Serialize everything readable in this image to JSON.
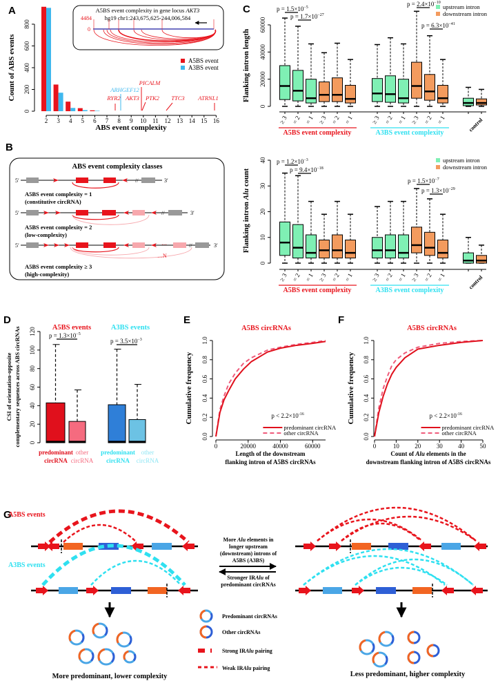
{
  "panel_labels": {
    "A": "A",
    "B": "B",
    "C": "C",
    "D": "D",
    "E": "E",
    "F": "F",
    "G": "G"
  },
  "colors": {
    "a5bs": "#e8141c",
    "a3bs": "#2fe0f0",
    "a3bs_bar": "#3fb8ee",
    "upstream": "#7ff0b4",
    "downstream": "#f39b5e",
    "d_pred_a5": "#e0101c",
    "d_other_a5": "#f56b7f",
    "d_pred_a3": "#2f7fd8",
    "d_other_a3": "#6cc2e4",
    "exon_orange": "#f26522",
    "exon_blue": "#2e5fd6",
    "exon_lightblue": "#4aa6e6",
    "grey": "#999999",
    "pink": "#f7a8ad"
  },
  "chart_data": [
    {
      "id": "A",
      "type": "bar",
      "title": "",
      "xlabel": "ABS event complexity",
      "ylabel": "Count of ABS events",
      "categories": [
        2,
        3,
        4,
        5,
        6,
        7,
        8,
        9,
        10,
        11,
        12,
        13,
        14,
        15,
        16
      ],
      "yticks": [
        0,
        200,
        400,
        600,
        800
      ],
      "ylim": [
        0,
        960
      ],
      "legend": "right",
      "series": [
        {
          "name": "A5BS event",
          "values": [
            960,
            245,
            88,
            28,
            8,
            0,
            0,
            0,
            0,
            0,
            0,
            0,
            0,
            0,
            0
          ]
        },
        {
          "name": "A3BS event",
          "values": [
            950,
            170,
            30,
            10,
            4,
            0,
            0,
            0,
            0,
            0,
            0,
            0,
            0,
            0,
            0
          ]
        }
      ],
      "gene_annotations": [
        {
          "gene": "RYR2",
          "complexity": 8,
          "event": "A5BS"
        },
        {
          "gene": "ARHGEF12",
          "complexity": 8,
          "event": "A3BS"
        },
        {
          "gene": "PICALM",
          "complexity": 10,
          "event": "A5BS"
        },
        {
          "gene": "AKT3",
          "complexity": 10,
          "event": "A5BS"
        },
        {
          "gene": "PTK2",
          "complexity": 10,
          "event": "A5BS"
        },
        {
          "gene": "TTC3",
          "complexity": 12,
          "event": "A5BS"
        },
        {
          "gene": "ATRNL1",
          "complexity": 16,
          "event": "A5BS"
        }
      ],
      "inset": {
        "title": "A5BS event complexity in gene locus ",
        "gene": "AKT3",
        "coords": "hg19 chr1:243,675,625-244,006,584",
        "ymax_label": "4484",
        "ymin_label": "0"
      }
    },
    {
      "id": "C-length",
      "type": "box",
      "ylabel": "Flanking intron length",
      "yticks": [
        0,
        20000,
        40000,
        60000
      ],
      "ylim": [
        0,
        60000
      ],
      "legend": "top-right",
      "legend_entries": [
        "upstream intron",
        "downstream intron"
      ],
      "group_labels": [
        "A5BS event complexity",
        "A3BS event complexity"
      ],
      "control_label": "control",
      "tick_labels": [
        "≥ 3",
        "= 2",
        "= 1",
        "≥ 3",
        "= 2",
        "= 1",
        "≥ 3",
        "= 2",
        "= 1",
        "≥ 3",
        "= 2",
        "= 1"
      ],
      "boxes": [
        {
          "group": "A5BS",
          "class": "≥3",
          "intron": "upstream",
          "low": 0,
          "q1": 5000,
          "median": 15000,
          "q3": 30000,
          "high": 65000
        },
        {
          "group": "A5BS",
          "class": "=2",
          "intron": "upstream",
          "low": 0,
          "q1": 4000,
          "median": 11500,
          "q3": 26500,
          "high": 59000
        },
        {
          "group": "A5BS",
          "class": "=1",
          "intron": "upstream",
          "low": 0,
          "q1": 2500,
          "median": 6000,
          "q3": 20000,
          "high": 46000
        },
        {
          "group": "A5BS",
          "class": "≥3",
          "intron": "downstream",
          "low": 0,
          "q1": 3500,
          "median": 8500,
          "q3": 18000,
          "high": 39500
        },
        {
          "group": "A5BS",
          "class": "=2",
          "intron": "downstream",
          "low": 0,
          "q1": 3500,
          "median": 8500,
          "q3": 21000,
          "high": 46500
        },
        {
          "group": "A5BS",
          "class": "=1",
          "intron": "downstream",
          "low": 0,
          "q1": 2500,
          "median": 5500,
          "q3": 15500,
          "high": 34500
        },
        {
          "group": "A3BS",
          "class": "≥3",
          "intron": "upstream",
          "low": 0,
          "q1": 3500,
          "median": 9500,
          "q3": 20500,
          "high": 45500
        },
        {
          "group": "A3BS",
          "class": "=2",
          "intron": "upstream",
          "low": 0,
          "q1": 3000,
          "median": 9000,
          "q3": 22500,
          "high": 50500
        },
        {
          "group": "A3BS",
          "class": "=1",
          "intron": "upstream",
          "low": 0,
          "q1": 2500,
          "median": 6000,
          "q3": 20000,
          "high": 46000
        },
        {
          "group": "A3BS",
          "class": "≥3",
          "intron": "downstream",
          "low": 0,
          "q1": 6000,
          "median": 15000,
          "q3": 32500,
          "high": 70000
        },
        {
          "group": "A3BS",
          "class": "=2",
          "intron": "downstream",
          "low": 0,
          "q1": 4500,
          "median": 11000,
          "q3": 23500,
          "high": 52000
        },
        {
          "group": "A3BS",
          "class": "=1",
          "intron": "downstream",
          "low": 0,
          "q1": 2500,
          "median": 6000,
          "q3": 15500,
          "high": 34500
        },
        {
          "group": "control",
          "class": "control",
          "intron": "upstream",
          "low": 0,
          "q1": 500,
          "median": 2500,
          "q3": 6000,
          "high": 14000
        },
        {
          "group": "control",
          "class": "control",
          "intron": "downstream",
          "low": 0,
          "q1": 1000,
          "median": 2500,
          "q3": 5500,
          "high": 12500
        }
      ],
      "pvalues": [
        {
          "base": "p = 1.5×10",
          "exp": "−5"
        },
        {
          "base": "p = 1.7×10",
          "exp": "−27"
        },
        {
          "base": "p = 2.4×10",
          "exp": "−10"
        },
        {
          "base": "p = 6.3×10",
          "exp": "−41"
        }
      ]
    },
    {
      "id": "C-alu",
      "type": "box",
      "ylabel_pre": "Flanking intron ",
      "ylabel_it": "Alu",
      "ylabel_post": " count",
      "yticks": [
        0,
        10,
        20,
        30,
        40
      ],
      "ylim": [
        0,
        40
      ],
      "legend": "top-right",
      "legend_entries": [
        "upstream intron",
        "downstream intron"
      ],
      "group_labels": [
        "A5BS event complexity",
        "A3BS event complexity"
      ],
      "control_label": "control",
      "tick_labels": [
        "≥ 3",
        "= 2",
        "= 1",
        "≥ 3",
        "= 2",
        "= 1",
        "≥ 3",
        "= 2",
        "= 1",
        "≥ 3",
        "= 2",
        "= 1"
      ],
      "boxes": [
        {
          "group": "A5BS",
          "class": "≥3",
          "intron": "upstream",
          "low": 0,
          "q1": 3,
          "median": 8,
          "q3": 16,
          "high": 35
        },
        {
          "group": "A5BS",
          "class": "=2",
          "intron": "upstream",
          "low": 0,
          "q1": 2,
          "median": 6,
          "q3": 15,
          "high": 34
        },
        {
          "group": "A5BS",
          "class": "=1",
          "intron": "upstream",
          "low": 0,
          "q1": 2,
          "median": 4,
          "q3": 11,
          "high": 24
        },
        {
          "group": "A5BS",
          "class": "≥3",
          "intron": "downstream",
          "low": 0,
          "q1": 2,
          "median": 5,
          "q3": 9,
          "high": 19
        },
        {
          "group": "A5BS",
          "class": "=2",
          "intron": "downstream",
          "low": 0,
          "q1": 2,
          "median": 5,
          "q3": 11,
          "high": 24
        },
        {
          "group": "A5BS",
          "class": "=1",
          "intron": "downstream",
          "low": 0,
          "q1": 2,
          "median": 4,
          "q3": 9,
          "high": 19
        },
        {
          "group": "A3BS",
          "class": "≥3",
          "intron": "upstream",
          "low": 0,
          "q1": 2,
          "median": 5,
          "q3": 10,
          "high": 22
        },
        {
          "group": "A3BS",
          "class": "=2",
          "intron": "upstream",
          "low": 0,
          "q1": 2,
          "median": 5,
          "q3": 11,
          "high": 24
        },
        {
          "group": "A3BS",
          "class": "=1",
          "intron": "upstream",
          "low": 0,
          "q1": 2,
          "median": 4,
          "q3": 11,
          "high": 24
        },
        {
          "group": "A3BS",
          "class": "≥3",
          "intron": "downstream",
          "low": 0,
          "q1": 4,
          "median": 7,
          "q3": 14,
          "high": 29
        },
        {
          "group": "A3BS",
          "class": "=2",
          "intron": "downstream",
          "low": 0,
          "q1": 3,
          "median": 6,
          "q3": 12,
          "high": 25
        },
        {
          "group": "A3BS",
          "class": "=1",
          "intron": "downstream",
          "low": 0,
          "q1": 2,
          "median": 4,
          "q3": 9,
          "high": 19
        },
        {
          "group": "control",
          "class": "control",
          "intron": "upstream",
          "low": 0,
          "q1": 0,
          "median": 1,
          "q3": 4,
          "high": 10
        },
        {
          "group": "control",
          "class": "control",
          "intron": "downstream",
          "low": 0,
          "q1": 0,
          "median": 1,
          "q3": 3,
          "high": 7
        }
      ],
      "pvalues": [
        {
          "base": "p = 1.2×10",
          "exp": "−3"
        },
        {
          "base": "p = 9.4×10",
          "exp": "−18"
        },
        {
          "base": "p = 1.5×10",
          "exp": "−7"
        },
        {
          "base": "p = 1.3×10",
          "exp": "−29"
        }
      ]
    },
    {
      "id": "D",
      "type": "bar",
      "ylabel_line1": "CSI of orientation-opposite",
      "ylabel_line2": "complementary sequences across ABS circRNAs",
      "yticks": [
        0,
        20,
        40,
        60,
        80,
        100,
        120
      ],
      "ylim": [
        0,
        120
      ],
      "group_titles": [
        "A5BS events",
        "A3BS events"
      ],
      "bars": [
        {
          "group": "A5BS",
          "label1": "predominant",
          "label2": "circRNA",
          "q3": 43,
          "median": 2,
          "whisker": 106
        },
        {
          "group": "A5BS",
          "label1": "other",
          "label2": "circRNA",
          "q3": 23,
          "median": 2,
          "whisker": 57
        },
        {
          "group": "A3BS",
          "label1": "predominant",
          "label2": "circRNA",
          "q3": 41,
          "median": 2,
          "whisker": 101
        },
        {
          "group": "A3BS",
          "label1": "other",
          "label2": "circRNA",
          "q3": 25,
          "median": 2,
          "whisker": 63
        }
      ],
      "pvalues": [
        {
          "base": "p = 1.3×10",
          "exp": "−5"
        },
        {
          "base": "p = 3.5×10",
          "exp": "−3"
        }
      ]
    },
    {
      "id": "E",
      "type": "line",
      "title": "A5BS circRNAs",
      "xlabel_line1": "Length of the downstream",
      "xlabel_line2": "flanking intron of A5BS circRNAs",
      "ylabel": "Cumulative frequency",
      "xticks": [
        0,
        20000,
        40000,
        60000
      ],
      "xlim": [
        0,
        68000
      ],
      "yticks": [
        "0.0",
        "0.2",
        "0.4",
        "0.6",
        "0.8",
        "1.0"
      ],
      "ylim": [
        0,
        1
      ],
      "legend": "bottom-right",
      "pvalue": {
        "base": "p < 2.2×10",
        "exp": "-16"
      },
      "series": [
        {
          "name": "predominant circRNA",
          "style": "solid",
          "x": [
            0,
            2500,
            5000,
            8000,
            12000,
            17000,
            22000,
            32000,
            40000,
            50000,
            60000,
            68000
          ],
          "y": [
            0,
            0.25,
            0.38,
            0.48,
            0.6,
            0.7,
            0.78,
            0.88,
            0.92,
            0.95,
            0.97,
            0.99
          ]
        },
        {
          "name": "other circRNA",
          "style": "dashed",
          "x": [
            0,
            2500,
            5000,
            8000,
            12000,
            17000,
            22000,
            32000,
            40000,
            50000,
            60000,
            68000
          ],
          "y": [
            0,
            0.28,
            0.42,
            0.55,
            0.66,
            0.76,
            0.82,
            0.9,
            0.93,
            0.96,
            0.98,
            1.0
          ]
        }
      ]
    },
    {
      "id": "F",
      "type": "line",
      "title": "A5BS circRNAs",
      "xlabel_pre": "Count of ",
      "xlabel_it": "Alu",
      "xlabel_post": " elements in the",
      "xlabel_line2": "downstream flanking intron of A5BS circRNAs",
      "ylabel": "Cumulative frequency",
      "xticks": [
        0,
        10,
        20,
        30,
        40,
        50
      ],
      "xlim": [
        0,
        50
      ],
      "yticks": [
        "0.0",
        "0.2",
        "0.4",
        "0.6",
        "0.8",
        "1.0"
      ],
      "ylim": [
        0,
        1
      ],
      "legend": "bottom-right",
      "pvalue": {
        "base": "p < 2.2×10",
        "exp": "-16"
      },
      "series": [
        {
          "name": "predominant circRNA",
          "style": "solid",
          "x": [
            0,
            2,
            4,
            6,
            8,
            10,
            14,
            20,
            30,
            40,
            50
          ],
          "y": [
            0,
            0.25,
            0.42,
            0.55,
            0.65,
            0.72,
            0.82,
            0.91,
            0.95,
            0.98,
            1.0
          ]
        },
        {
          "name": "other circRNA",
          "style": "dashed",
          "x": [
            0,
            2,
            4,
            6,
            8,
            10,
            14,
            20,
            30,
            40,
            50
          ],
          "y": [
            0,
            0.3,
            0.5,
            0.63,
            0.74,
            0.8,
            0.87,
            0.93,
            0.97,
            0.99,
            1.0
          ]
        }
      ]
    }
  ],
  "panelB": {
    "title": "ABS event complexity classes",
    "five_prime": "5′",
    "three_prime": "3′",
    "row1_line1": "A5BS event complexity = 1",
    "row1_line2": "(constitutive circRNA)",
    "row2_line1": "A5BS event complexity = 2",
    "row2_line2": "(low-complexity)",
    "row3_line1": "A5BS event complexity ≥ 3",
    "row3_line2": "(high-complexity)",
    "ellipsis": "···",
    "n_label": "…N"
  },
  "panelG": {
    "a5bs_label": "A5BS events",
    "a3bs_label": "A3BS events",
    "center_pre": "More ",
    "center_it": "Alu",
    "center_post": " elements in",
    "center_line2": "longer upstream",
    "center_line3": "(downstream) introns of",
    "center_line4": "A5BS (A3BS)",
    "stronger_pre": "Stronger IR",
    "stronger_it": "Alu",
    "stronger_post": " of",
    "stronger_line2": "predominant circRNAs",
    "legend_predominant": "Predominant circRNAs",
    "legend_other": "Other circRNAs",
    "legend_strong_pre": "Strong IR",
    "legend_strong_it": "Alu",
    "legend_strong_post": " pairing",
    "legend_weak_pre": "Weak IR",
    "legend_weak_it": "Alu",
    "legend_weak_post": " pairing",
    "left_caption": "More predominant, lower complexity",
    "right_caption": "Less predominant, higher complexity"
  }
}
